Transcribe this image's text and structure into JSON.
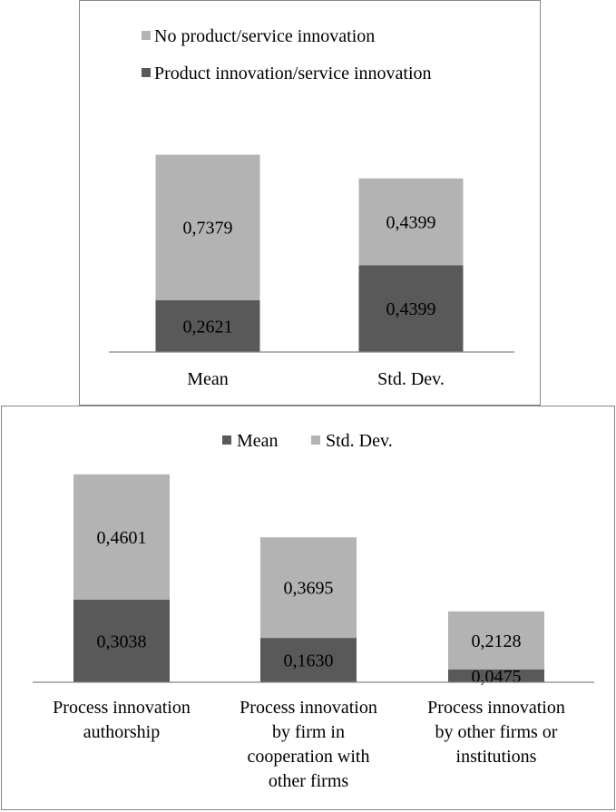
{
  "chart_data": [
    {
      "type": "bar",
      "stacked": true,
      "categories": [
        "Mean",
        "Std. Dev."
      ],
      "series": [
        {
          "name": "Product innovation/service innovation",
          "values": [
            0.2621,
            0.4399
          ],
          "labels": [
            "0,2621",
            "0,4399"
          ],
          "color": "#595959"
        },
        {
          "name": "No product/service innovation",
          "values": [
            0.7379,
            0.4399
          ],
          "labels": [
            "0,7379",
            "0,4399"
          ],
          "color": "#b3b3b3"
        }
      ],
      "legend_order": [
        1,
        0
      ],
      "legend_position": "top-left",
      "ylim": [
        0,
        1.2
      ],
      "grid": false
    },
    {
      "type": "bar",
      "stacked": true,
      "categories": [
        [
          "Process innovation",
          "authorship"
        ],
        [
          "Process innovation",
          "by firm in",
          "cooperation with",
          "other firms"
        ],
        [
          "Process innovation",
          "by other firms or",
          "institutions"
        ]
      ],
      "series": [
        {
          "name": "Mean",
          "values": [
            0.3038,
            0.163,
            0.0475
          ],
          "labels": [
            "0,3038",
            "0,1630",
            "0,0475"
          ],
          "color": "#595959"
        },
        {
          "name": "Std. Dev.",
          "values": [
            0.4601,
            0.3695,
            0.2128
          ],
          "labels": [
            "0,4601",
            "0,3695",
            "0,2128"
          ],
          "color": "#b3b3b3"
        }
      ],
      "legend_order": [
        0,
        1
      ],
      "legend_position": "top-center",
      "ylim": [
        0,
        0.8
      ],
      "grid": false
    }
  ]
}
